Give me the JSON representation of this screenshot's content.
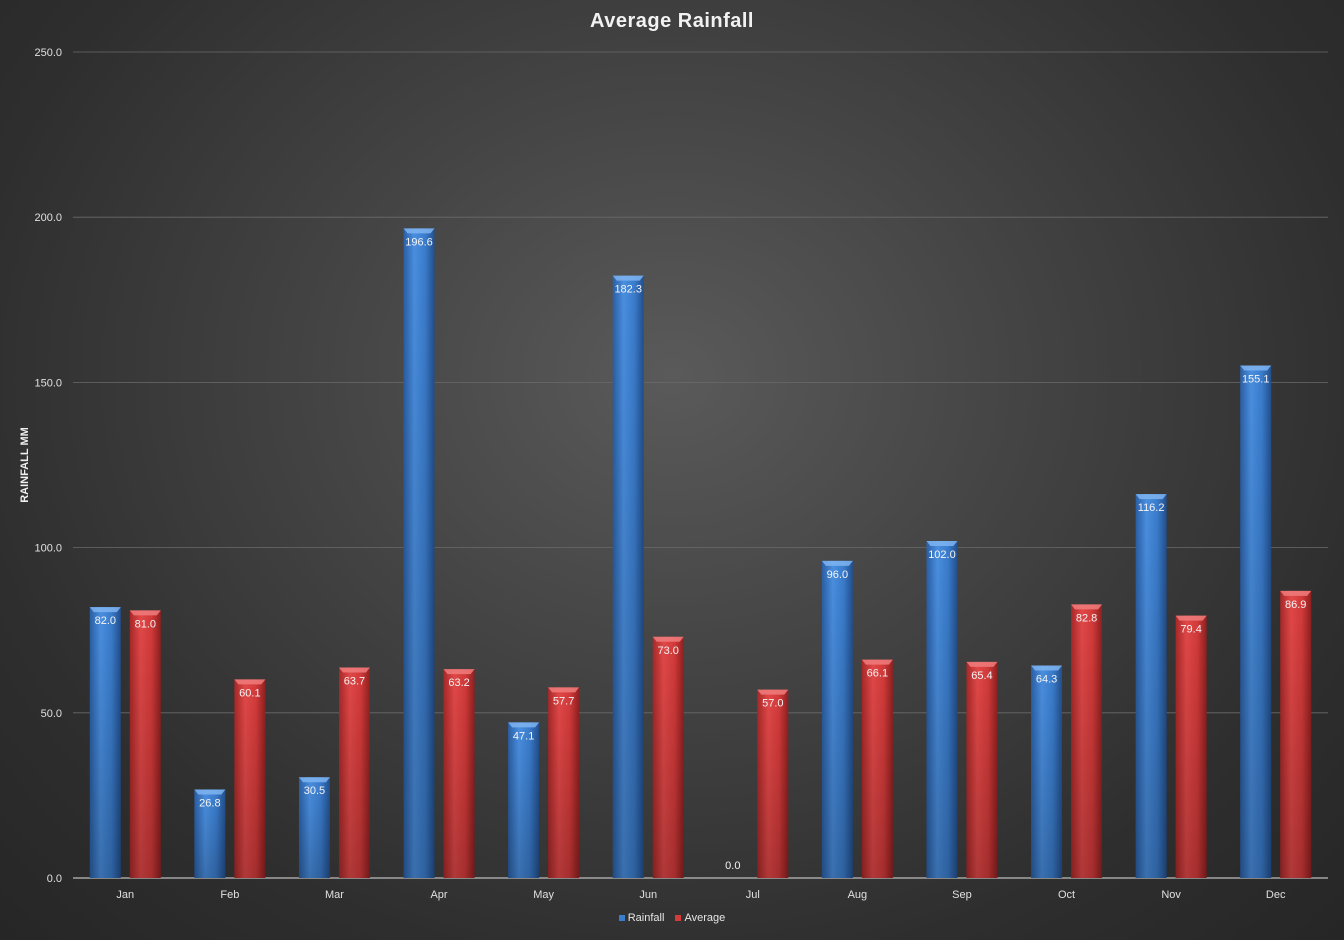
{
  "chart_data": {
    "type": "bar",
    "title": "Average Rainfall",
    "xlabel": "",
    "ylabel": "RAINFALL MM",
    "ylim": [
      0,
      250
    ],
    "yticks": [
      "0.0",
      "50.0",
      "100.0",
      "150.0",
      "200.0",
      "250.0"
    ],
    "categories": [
      "Jan",
      "Feb",
      "Mar",
      "Apr",
      "May",
      "Jun",
      "Jul",
      "Aug",
      "Sep",
      "Oct",
      "Nov",
      "Dec"
    ],
    "series": [
      {
        "name": "Rainfall",
        "color": "#3a7ccc",
        "values": [
          82.0,
          26.8,
          30.5,
          196.6,
          47.1,
          182.3,
          0.0,
          96.0,
          102.0,
          64.3,
          116.2,
          155.1
        ],
        "labels": [
          "82.0",
          "26.8",
          "30.5",
          "196.6",
          "47.1",
          "182.3",
          "0.0",
          "96.0",
          "102.0",
          "64.3",
          "116.2",
          "155.1"
        ]
      },
      {
        "name": "Average",
        "color": "#d33a3a",
        "values": [
          81.0,
          60.1,
          63.7,
          63.2,
          57.7,
          73.0,
          57.0,
          66.1,
          65.4,
          82.8,
          79.4,
          86.9
        ],
        "labels": [
          "81.0",
          "60.1",
          "63.7",
          "63.2",
          "57.7",
          "73.0",
          "57.0",
          "66.1",
          "65.4",
          "82.8",
          "79.4",
          "86.9"
        ]
      }
    ],
    "grid": true,
    "legend_position": "bottom"
  }
}
